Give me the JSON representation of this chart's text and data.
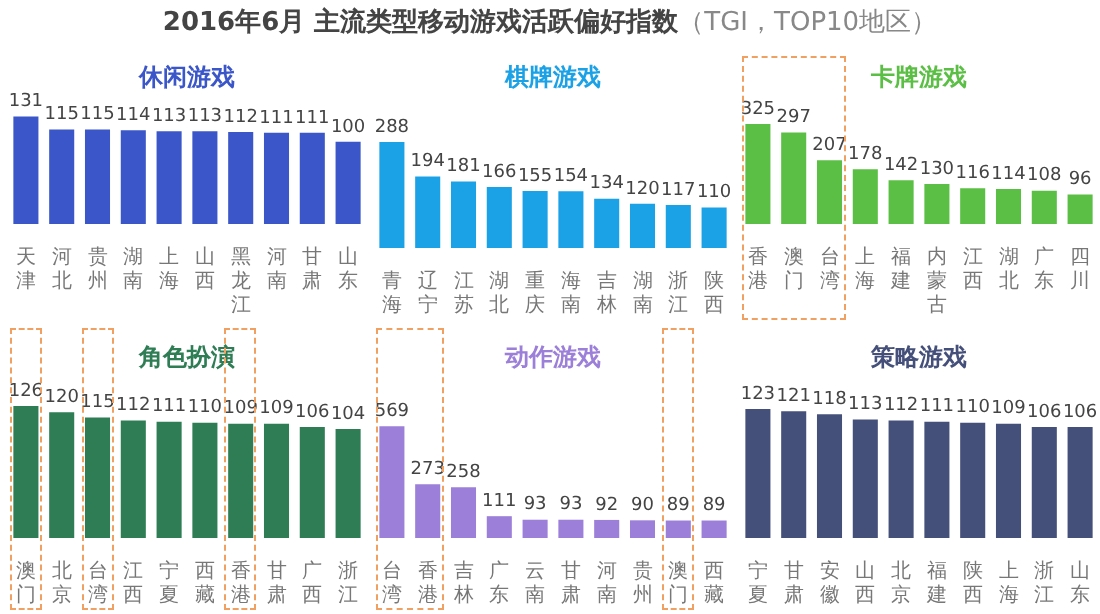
{
  "chart_data": [
    {
      "type": "bar",
      "title": "休闲游戏",
      "annotations": [
        "2016年6月 主流类型移动游戏活跃偏好指数",
        "（TGI，TOP10地区）"
      ],
      "categories": [
        "天津",
        "河北",
        "贵州",
        "湖南",
        "上海",
        "山西",
        "黑龙江",
        "河南",
        "甘肃",
        "山东"
      ],
      "values": [
        131,
        115,
        115,
        114,
        113,
        113,
        112,
        111,
        111,
        100
      ],
      "color": "#3a56c8",
      "data_labels": true,
      "grid": false,
      "legend": false,
      "tick_labels": "x"
    },
    {
      "type": "bar",
      "title": "棋牌游戏",
      "categories": [
        "青海",
        "辽宁",
        "江苏",
        "湖北",
        "重庆",
        "海南",
        "吉林",
        "湖南",
        "浙江",
        "陕西"
      ],
      "values": [
        288,
        194,
        181,
        166,
        155,
        154,
        134,
        120,
        117,
        110
      ],
      "color": "#1ba1e6",
      "data_labels": true,
      "grid": false,
      "legend": false,
      "tick_labels": "x"
    },
    {
      "type": "bar",
      "title": "卡牌游戏",
      "categories": [
        "香港",
        "澳门",
        "台湾",
        "上海",
        "福建",
        "内蒙古",
        "江西",
        "湖北",
        "广东",
        "四川"
      ],
      "values": [
        325,
        297,
        207,
        178,
        142,
        130,
        116,
        114,
        108,
        96
      ],
      "color": "#5cbf45",
      "data_labels": true,
      "grid": false,
      "legend": false,
      "tick_labels": "x"
    },
    {
      "type": "bar",
      "title": "角色扮演",
      "categories": [
        "澳门",
        "北京",
        "台湾",
        "江西",
        "宁夏",
        "西藏",
        "香港",
        "甘肃",
        "广西",
        "浙江"
      ],
      "values": [
        126,
        120,
        115,
        112,
        111,
        110,
        109,
        109,
        106,
        104
      ],
      "color": "#2e7d55",
      "data_labels": true,
      "grid": false,
      "legend": false,
      "tick_labels": "x"
    },
    {
      "type": "bar",
      "title": "动作游戏",
      "categories": [
        "台湾",
        "香港",
        "吉林",
        "广东",
        "云南",
        "甘肃",
        "河南",
        "贵州",
        "澳门",
        "西藏"
      ],
      "values": [
        569,
        273,
        258,
        111,
        93,
        93,
        92,
        90,
        89,
        89
      ],
      "color": "#9b7fd8",
      "data_labels": true,
      "grid": false,
      "legend": false,
      "tick_labels": "x"
    },
    {
      "type": "bar",
      "title": "策略游戏",
      "categories": [
        "宁夏",
        "甘肃",
        "安徽",
        "山西",
        "北京",
        "福建",
        "陕西",
        "上海",
        "浙江",
        "山东"
      ],
      "values": [
        123,
        121,
        118,
        113,
        112,
        111,
        110,
        109,
        106,
        106
      ],
      "color": "#45507a",
      "data_labels": true,
      "grid": false,
      "legend": false,
      "tick_labels": "x"
    }
  ]
}
